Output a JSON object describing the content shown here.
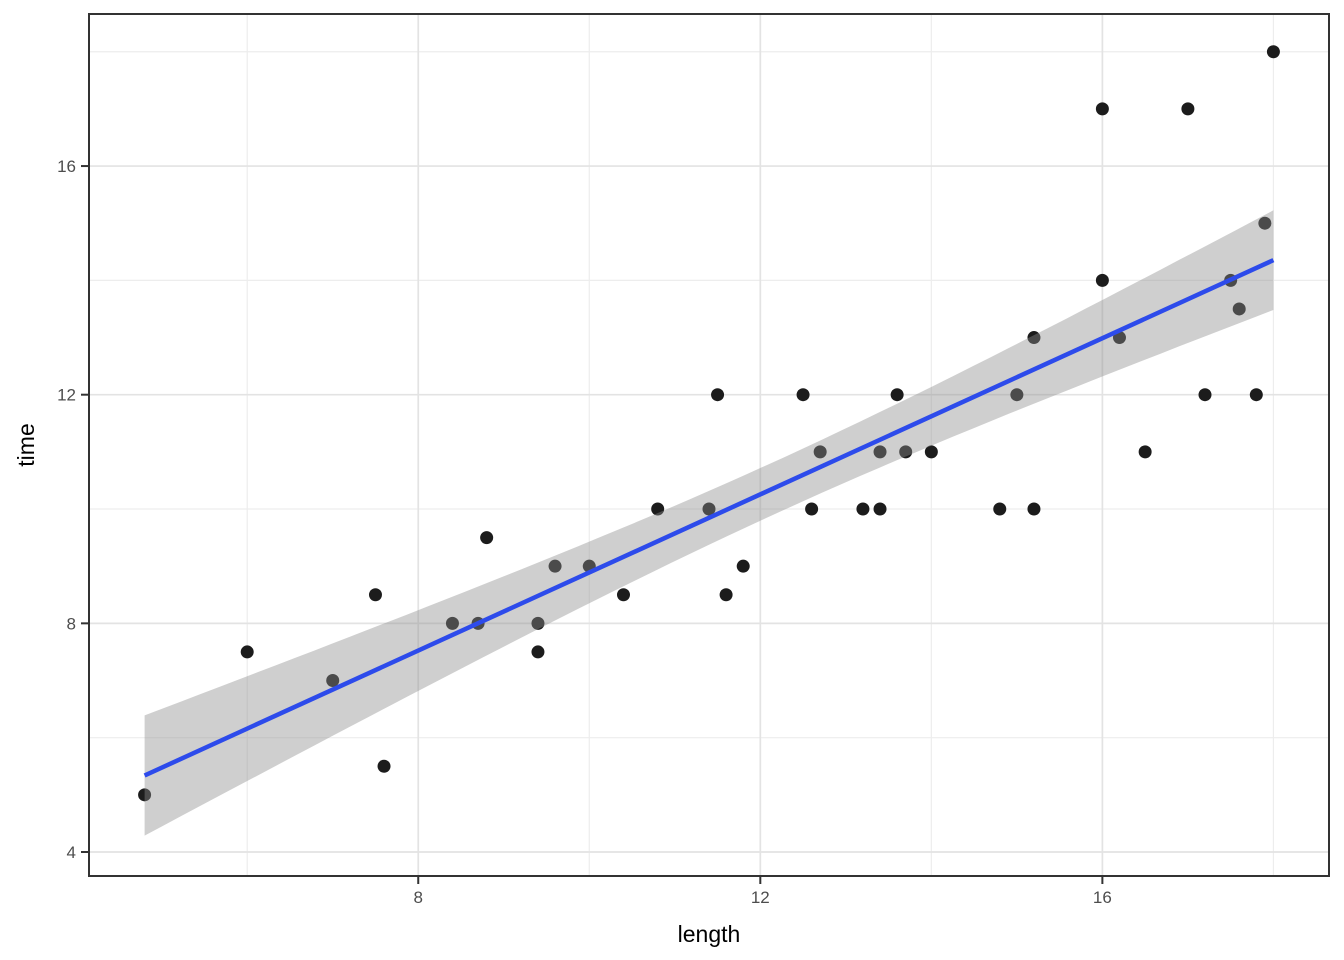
{
  "chart_data": {
    "type": "scatter",
    "title": "",
    "xlabel": "length",
    "ylabel": "time",
    "x_ticks": [
      8,
      12,
      16
    ],
    "y_ticks": [
      4,
      8,
      12,
      16
    ],
    "x_minor_ticks": [
      6,
      10,
      14,
      18
    ],
    "y_minor_ticks": [
      6,
      10,
      14,
      18
    ],
    "x_domain": [
      4.15,
      18.65
    ],
    "y_domain": [
      3.58,
      18.66
    ],
    "grid": true,
    "legend": "none",
    "points": [
      [
        4.8,
        5
      ],
      [
        6,
        7.5
      ],
      [
        7,
        7
      ],
      [
        7.5,
        8.5
      ],
      [
        7.6,
        5.5
      ],
      [
        8.4,
        8
      ],
      [
        8.7,
        8
      ],
      [
        8.8,
        9.5
      ],
      [
        9.4,
        7.5
      ],
      [
        9.4,
        8
      ],
      [
        9.6,
        9
      ],
      [
        10,
        9
      ],
      [
        10.4,
        8.5
      ],
      [
        10.8,
        10
      ],
      [
        11.4,
        10
      ],
      [
        11.5,
        12
      ],
      [
        11.6,
        8.5
      ],
      [
        11.8,
        9
      ],
      [
        12.5,
        12
      ],
      [
        12.6,
        10
      ],
      [
        12.7,
        11
      ],
      [
        13.2,
        10
      ],
      [
        13.4,
        10
      ],
      [
        13.4,
        11
      ],
      [
        13.6,
        12
      ],
      [
        13.7,
        11
      ],
      [
        14,
        11
      ],
      [
        14.8,
        10
      ],
      [
        15,
        12
      ],
      [
        15.2,
        10
      ],
      [
        15.2,
        13
      ],
      [
        16,
        14
      ],
      [
        16,
        17
      ],
      [
        16.2,
        13
      ],
      [
        16.5,
        11
      ],
      [
        17,
        17
      ],
      [
        17.2,
        12
      ],
      [
        17.5,
        14
      ],
      [
        17.6,
        13.5
      ],
      [
        17.8,
        12
      ],
      [
        17.9,
        15
      ],
      [
        18,
        18
      ]
    ],
    "smooth": {
      "method": "linear-regression",
      "slope": 0.683,
      "intercept": 2.06,
      "x_start": 4.8,
      "x_end": 18.0,
      "band_half_width_min": 0.46,
      "band_center_x": 12.2,
      "band_spread": 3.6
    },
    "colors": {
      "point": "#1C1C1C",
      "smooth_line": "#2D4BEB",
      "band_fill": "rgba(140,140,140,0.42)",
      "grid_major": "#E3E3E3",
      "grid_minor": "#EDEDED",
      "panel_border": "#333333",
      "tick_mark": "#333333",
      "tick_label": "#4D4D4D",
      "axis_title": "#000000",
      "panel_background": "#FFFFFF"
    }
  }
}
